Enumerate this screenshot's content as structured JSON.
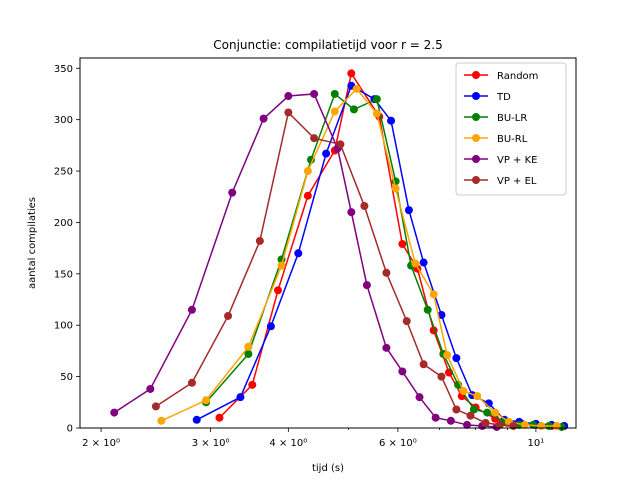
{
  "chart_data": {
    "type": "line",
    "title": "Conjunctie: compilatietijd voor r = 2.5",
    "xlabel": "tijd (s)",
    "ylabel": "aantal compilaties",
    "xscale": "log",
    "xlim": [
      1.85,
      11.6
    ],
    "ylim": [
      0,
      360
    ],
    "xticks": [
      {
        "value": 2,
        "label": "2 × 10⁰"
      },
      {
        "value": 3,
        "label": "3 × 10⁰"
      },
      {
        "value": 4,
        "label": "4 × 10⁰"
      },
      {
        "value": 6,
        "label": "6 × 10⁰"
      },
      {
        "value": 10,
        "label": "10¹"
      }
    ],
    "yticks": [
      0,
      50,
      100,
      150,
      200,
      250,
      300,
      350
    ],
    "grid": false,
    "legend_position": "top-right",
    "series": [
      {
        "name": "Random",
        "color": "#ff0000",
        "x": [
          3.1,
          3.5,
          3.85,
          4.3,
          4.75,
          5.05,
          5.6,
          6.1,
          6.45,
          6.85,
          7.25,
          7.6,
          8.0,
          8.6,
          9.0,
          9.5,
          10.0,
          10.6,
          11.1
        ],
        "y": [
          10,
          42,
          134,
          226,
          270,
          345,
          303,
          179,
          155,
          95,
          54,
          31,
          20,
          9,
          5,
          4,
          3,
          2,
          2
        ]
      },
      {
        "name": "TD",
        "color": "#0000ff",
        "x": [
          2.85,
          3.35,
          3.75,
          4.15,
          4.6,
          5.05,
          5.5,
          5.85,
          6.25,
          6.6,
          7.05,
          7.45,
          7.9,
          8.4,
          8.9,
          9.4,
          10.0,
          10.6,
          11.1
        ],
        "y": [
          8,
          30,
          99,
          170,
          267,
          333,
          320,
          299,
          212,
          161,
          110,
          68,
          32,
          24,
          8,
          6,
          4,
          3,
          2
        ]
      },
      {
        "name": "BU-LR",
        "color": "#008000",
        "x": [
          2.95,
          3.45,
          3.9,
          4.35,
          4.75,
          5.1,
          5.55,
          5.95,
          6.3,
          6.7,
          7.1,
          7.5,
          7.95,
          8.35,
          8.9,
          9.4,
          9.9,
          10.5,
          11.0
        ],
        "y": [
          25,
          72,
          164,
          261,
          325,
          310,
          320,
          240,
          158,
          115,
          72,
          42,
          18,
          15,
          6,
          3,
          3,
          2,
          1
        ]
      },
      {
        "name": "BU-RL",
        "color": "#ffa500",
        "x": [
          2.5,
          2.95,
          3.45,
          3.9,
          4.3,
          4.75,
          5.15,
          5.55,
          5.95,
          6.4,
          6.85,
          7.2,
          7.65,
          8.05,
          8.6,
          9.05,
          9.6,
          10.2,
          10.8
        ],
        "y": [
          7,
          27,
          79,
          158,
          250,
          308,
          330,
          306,
          233,
          160,
          130,
          71,
          36,
          31,
          15,
          6,
          3,
          2,
          2
        ]
      },
      {
        "name": "VP + KE",
        "color": "#800080",
        "x": [
          2.1,
          2.4,
          2.8,
          3.25,
          3.65,
          4.0,
          4.4,
          4.8,
          5.05,
          5.35,
          5.75,
          6.1,
          6.5,
          6.9,
          7.3,
          7.75,
          8.2,
          8.65
        ],
        "y": [
          15,
          38,
          115,
          229,
          301,
          323,
          325,
          272,
          210,
          139,
          78,
          55,
          30,
          10,
          7,
          3,
          2,
          1
        ]
      },
      {
        "name": "VP + EL",
        "color": "#a52a2a",
        "x": [
          2.45,
          2.8,
          3.2,
          3.6,
          4.0,
          4.4,
          4.85,
          5.3,
          5.75,
          6.2,
          6.6,
          7.05,
          7.45,
          7.85,
          8.3,
          8.75,
          9.2
        ],
        "y": [
          21,
          44,
          109,
          182,
          307,
          282,
          276,
          216,
          151,
          104,
          62,
          50,
          18,
          12,
          5,
          3,
          2
        ]
      }
    ]
  }
}
